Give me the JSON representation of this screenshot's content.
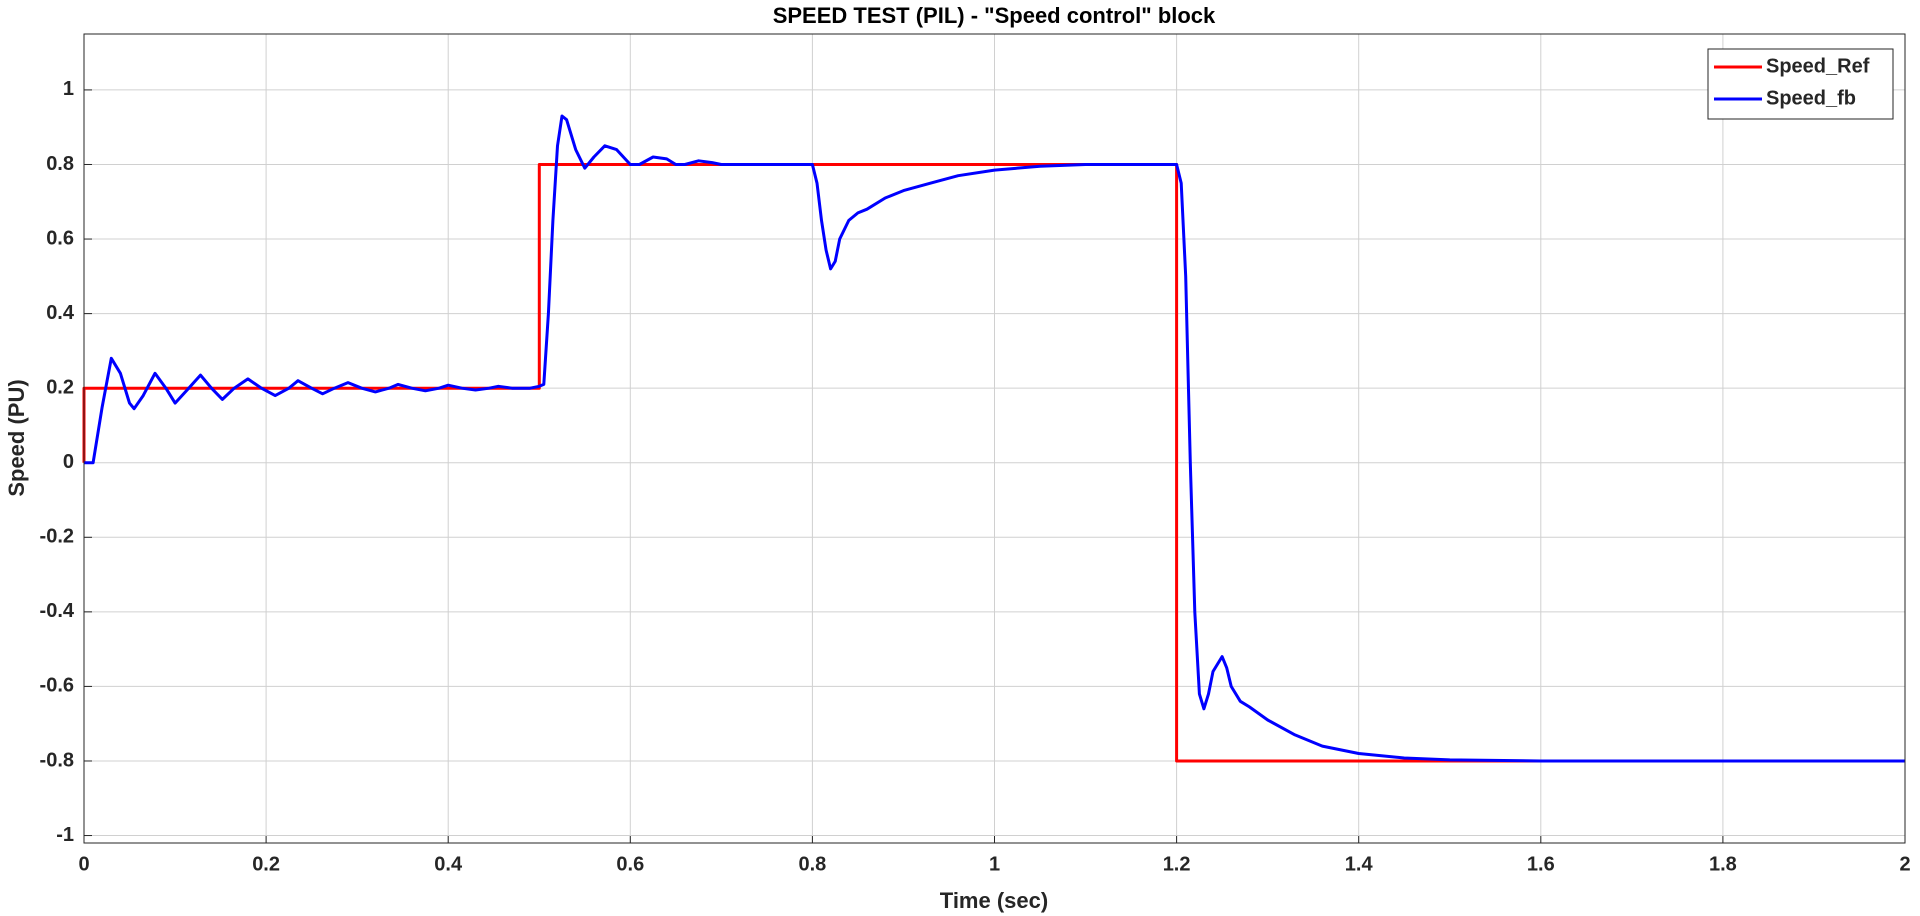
{
  "chart_data": {
    "type": "line",
    "title": "SPEED TEST (PIL) - \"Speed control\" block",
    "x_label": "Time (sec)",
    "y_label": "Speed (PU)",
    "xlim": [
      0,
      2
    ],
    "xticks": [
      0,
      0.2,
      0.4,
      0.6,
      0.8,
      1,
      1.2,
      1.4,
      1.6,
      1.8,
      2
    ],
    "ylim": [
      -1.02,
      1.15
    ],
    "yticks": [
      -1,
      -0.8,
      -0.6,
      -0.4,
      -0.2,
      0,
      0.2,
      0.4,
      0.6,
      0.8,
      1
    ],
    "grid": true,
    "legend": "top-right",
    "series": [
      {
        "name": "Speed_Ref",
        "color": "#ff0000",
        "x": [
          0,
          0,
          0.5,
          0.5,
          1.2,
          1.2,
          2
        ],
        "values": [
          0,
          0.2,
          0.2,
          0.8,
          0.8,
          -0.8,
          -0.8
        ]
      },
      {
        "name": "Speed_fb",
        "color": "#0000ff",
        "x": [
          0,
          0.01,
          0.02,
          0.03,
          0.04,
          0.05,
          0.055,
          0.065,
          0.078,
          0.09,
          0.1,
          0.115,
          0.128,
          0.14,
          0.152,
          0.165,
          0.18,
          0.195,
          0.21,
          0.225,
          0.235,
          0.25,
          0.262,
          0.275,
          0.29,
          0.305,
          0.32,
          0.335,
          0.345,
          0.36,
          0.375,
          0.39,
          0.4,
          0.415,
          0.43,
          0.445,
          0.455,
          0.47,
          0.49,
          0.5,
          0.505,
          0.51,
          0.515,
          0.52,
          0.525,
          0.53,
          0.54,
          0.55,
          0.56,
          0.572,
          0.585,
          0.6,
          0.61,
          0.625,
          0.64,
          0.65,
          0.66,
          0.675,
          0.69,
          0.7,
          0.75,
          0.8,
          0.805,
          0.81,
          0.815,
          0.82,
          0.825,
          0.83,
          0.84,
          0.85,
          0.86,
          0.88,
          0.9,
          0.93,
          0.96,
          1.0,
          1.05,
          1.1,
          1.15,
          1.2,
          1.205,
          1.21,
          1.215,
          1.22,
          1.225,
          1.23,
          1.235,
          1.24,
          1.25,
          1.255,
          1.26,
          1.27,
          1.28,
          1.3,
          1.33,
          1.36,
          1.4,
          1.45,
          1.5,
          1.6,
          2
        ],
        "values": [
          0,
          0,
          0.15,
          0.28,
          0.24,
          0.16,
          0.145,
          0.18,
          0.24,
          0.2,
          0.16,
          0.2,
          0.235,
          0.2,
          0.17,
          0.2,
          0.225,
          0.2,
          0.18,
          0.2,
          0.22,
          0.2,
          0.185,
          0.2,
          0.215,
          0.2,
          0.19,
          0.2,
          0.21,
          0.2,
          0.193,
          0.2,
          0.208,
          0.2,
          0.195,
          0.2,
          0.205,
          0.2,
          0.2,
          0.205,
          0.21,
          0.4,
          0.65,
          0.85,
          0.93,
          0.92,
          0.84,
          0.79,
          0.82,
          0.85,
          0.84,
          0.8,
          0.8,
          0.82,
          0.815,
          0.8,
          0.8,
          0.81,
          0.805,
          0.8,
          0.8,
          0.8,
          0.75,
          0.65,
          0.57,
          0.52,
          0.54,
          0.6,
          0.65,
          0.67,
          0.68,
          0.71,
          0.73,
          0.75,
          0.77,
          0.785,
          0.795,
          0.8,
          0.8,
          0.8,
          0.75,
          0.5,
          0,
          -0.4,
          -0.62,
          -0.66,
          -0.62,
          -0.56,
          -0.52,
          -0.55,
          -0.6,
          -0.64,
          -0.655,
          -0.69,
          -0.73,
          -0.76,
          -0.78,
          -0.792,
          -0.797,
          -0.8,
          -0.8
        ]
      }
    ]
  }
}
